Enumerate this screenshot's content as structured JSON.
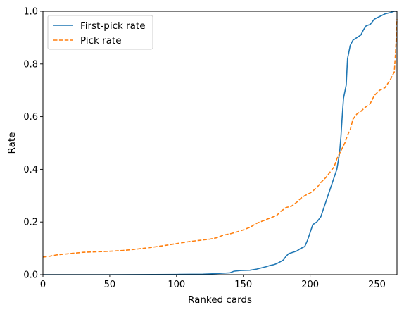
{
  "chart_data": {
    "type": "line",
    "xlabel": "Ranked cards",
    "ylabel": "Rate",
    "xlim": [
      0,
      265
    ],
    "ylim": [
      0,
      1.0
    ],
    "xticks": [
      0,
      50,
      100,
      150,
      200,
      250
    ],
    "yticks": [
      0.0,
      0.2,
      0.4,
      0.6,
      0.8,
      1.0
    ],
    "grid": false,
    "legend_position": "top-left",
    "series": [
      {
        "name": "First-pick rate",
        "color": "#1f77b4",
        "style": "solid",
        "points": [
          [
            0,
            0
          ],
          [
            50,
            0
          ],
          [
            100,
            0.001
          ],
          [
            120,
            0.002
          ],
          [
            130,
            0.004
          ],
          [
            140,
            0.007
          ],
          [
            143,
            0.013
          ],
          [
            148,
            0.016
          ],
          [
            155,
            0.017
          ],
          [
            160,
            0.021
          ],
          [
            163,
            0.025
          ],
          [
            167,
            0.03
          ],
          [
            170,
            0.035
          ],
          [
            173,
            0.038
          ],
          [
            175,
            0.042
          ],
          [
            178,
            0.05
          ],
          [
            180,
            0.056
          ],
          [
            182,
            0.07
          ],
          [
            184,
            0.08
          ],
          [
            187,
            0.085
          ],
          [
            190,
            0.09
          ],
          [
            193,
            0.1
          ],
          [
            196,
            0.107
          ],
          [
            198,
            0.13
          ],
          [
            200,
            0.16
          ],
          [
            202,
            0.19
          ],
          [
            205,
            0.2
          ],
          [
            208,
            0.22
          ],
          [
            210,
            0.25
          ],
          [
            212,
            0.28
          ],
          [
            214,
            0.31
          ],
          [
            216,
            0.34
          ],
          [
            218,
            0.37
          ],
          [
            220,
            0.4
          ],
          [
            221,
            0.43
          ],
          [
            222,
            0.46
          ],
          [
            223,
            0.52
          ],
          [
            224,
            0.6
          ],
          [
            225,
            0.67
          ],
          [
            227,
            0.72
          ],
          [
            228,
            0.82
          ],
          [
            230,
            0.87
          ],
          [
            232,
            0.89
          ],
          [
            235,
            0.9
          ],
          [
            238,
            0.91
          ],
          [
            240,
            0.93
          ],
          [
            242,
            0.945
          ],
          [
            245,
            0.95
          ],
          [
            248,
            0.97
          ],
          [
            252,
            0.98
          ],
          [
            256,
            0.99
          ],
          [
            260,
            0.995
          ],
          [
            263,
            1.0
          ],
          [
            265,
            1.0
          ]
        ]
      },
      {
        "name": "Pick rate",
        "color": "#ff7f0e",
        "style": "dashed",
        "points": [
          [
            0,
            0.067
          ],
          [
            5,
            0.07
          ],
          [
            10,
            0.075
          ],
          [
            20,
            0.08
          ],
          [
            30,
            0.085
          ],
          [
            40,
            0.087
          ],
          [
            50,
            0.089
          ],
          [
            60,
            0.092
          ],
          [
            70,
            0.097
          ],
          [
            80,
            0.103
          ],
          [
            90,
            0.11
          ],
          [
            100,
            0.118
          ],
          [
            110,
            0.126
          ],
          [
            120,
            0.132
          ],
          [
            125,
            0.135
          ],
          [
            130,
            0.14
          ],
          [
            135,
            0.15
          ],
          [
            140,
            0.155
          ],
          [
            145,
            0.162
          ],
          [
            150,
            0.17
          ],
          [
            155,
            0.18
          ],
          [
            160,
            0.195
          ],
          [
            165,
            0.205
          ],
          [
            170,
            0.215
          ],
          [
            175,
            0.225
          ],
          [
            178,
            0.24
          ],
          [
            182,
            0.255
          ],
          [
            186,
            0.26
          ],
          [
            190,
            0.275
          ],
          [
            193,
            0.29
          ],
          [
            196,
            0.3
          ],
          [
            200,
            0.31
          ],
          [
            205,
            0.33
          ],
          [
            208,
            0.35
          ],
          [
            212,
            0.37
          ],
          [
            215,
            0.39
          ],
          [
            218,
            0.41
          ],
          [
            220,
            0.44
          ],
          [
            222,
            0.46
          ],
          [
            224,
            0.48
          ],
          [
            226,
            0.5
          ],
          [
            228,
            0.53
          ],
          [
            230,
            0.55
          ],
          [
            232,
            0.59
          ],
          [
            235,
            0.61
          ],
          [
            238,
            0.62
          ],
          [
            240,
            0.63
          ],
          [
            245,
            0.65
          ],
          [
            248,
            0.68
          ],
          [
            250,
            0.69
          ],
          [
            252,
            0.7
          ],
          [
            256,
            0.71
          ],
          [
            260,
            0.74
          ],
          [
            263,
            0.77
          ],
          [
            264,
            0.85
          ],
          [
            265,
            0.97
          ]
        ]
      }
    ]
  }
}
